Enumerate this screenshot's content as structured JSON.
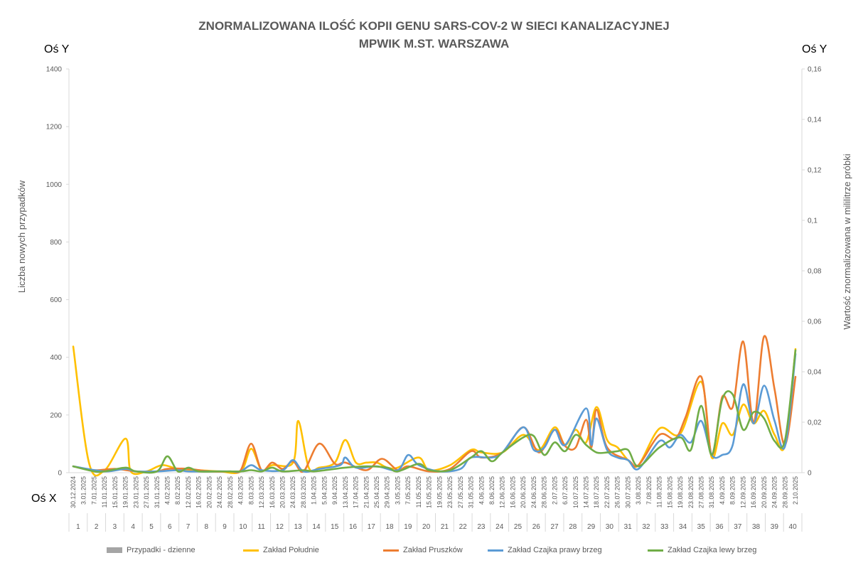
{
  "title_line1": "ZNORMALIZOWANA ILOŚĆ KOPII GENU SARS-COV-2 W SIECI KANALIZACYJNEJ",
  "title_line2": "MPWIK M.ST. WARSZAWA",
  "corner_y_left": "Oś Y",
  "corner_y_right": "Oś Y",
  "corner_x": "Oś X",
  "chart_data": {
    "type": "line",
    "title": "ZNORMALIZOWANA ILOŚĆ KOPII GENU SARS-COV-2 W SIECI KANALIZACYJNEJ MPWIK M.ST. WARSZAWA",
    "ylabel": "Liczba nowych przypadków",
    "y2label": "Wartość znormalizowana  w mililitrze próbki",
    "ylim": [
      0,
      1400
    ],
    "y2lim": [
      0,
      0.16
    ],
    "yticks": [
      "0",
      "200",
      "400",
      "600",
      "800",
      "1000",
      "1200",
      "1400"
    ],
    "y2ticks": [
      "0",
      "0,02",
      "0,04",
      "0,06",
      "0,08",
      "0,1",
      "0,12",
      "0,14",
      "0,16"
    ],
    "grid": false,
    "legend_position": "bottom",
    "dates": [
      "30.12.2024",
      "3.01.2025",
      "7.01.2025",
      "11.01.2025",
      "15.01.2025",
      "19.01.2025",
      "23.01.2025",
      "27.01.2025",
      "31.01.2025",
      "4.02.2025",
      "8.02.2025",
      "12.02.2025",
      "16.02.2025",
      "20.02.2025",
      "24.02.2025",
      "28.02.2025",
      "4.03.2025",
      "8.03.2025",
      "12.03.2025",
      "16.03.2025",
      "20.03.2025",
      "24.03.2025",
      "28.03.2025",
      "1.04.2025",
      "5.04.2025",
      "9.04.2025",
      "13.04.2025",
      "17.04.2025",
      "21.04.2025",
      "25.04.2025",
      "29.04.2025",
      "3.05.2025",
      "7.05.2025",
      "11.05.2025",
      "15.05.2025",
      "19.05.2025",
      "23.05.2025",
      "27.05.2025",
      "31.05.2025",
      "4.06.2025",
      "8.06.2025",
      "12.06.2025",
      "16.06.2025",
      "20.06.2025",
      "24.06.2025",
      "28.06.2025",
      "2.07.2025",
      "6.07.2025",
      "10.07.2025",
      "14.07.2025",
      "18.07.2025",
      "22.07.2025",
      "26.07.2025",
      "30.07.2025",
      "3.08.2025",
      "7.08.2025",
      "11.08.2025",
      "15.08.2025",
      "19.08.2025",
      "23.08.2025",
      "27.08.2025",
      "31.08.2025",
      "4.09.2025",
      "8.09.2025",
      "12.09.2025",
      "16.09.2025",
      "20.09.2025",
      "24.09.2025",
      "28.09.2025",
      "2.10.2025"
    ],
    "weeks": [
      "1",
      "2",
      "3",
      "4",
      "5",
      "6",
      "7",
      "8",
      "9",
      "10",
      "11",
      "12",
      "13",
      "14",
      "15",
      "16",
      "17",
      "18",
      "19",
      "20",
      "21",
      "22",
      "23",
      "24",
      "25",
      "26",
      "27",
      "28",
      "29",
      "30",
      "31",
      "32",
      "33",
      "34",
      "35",
      "36",
      "37",
      "38",
      "39",
      "40"
    ],
    "series": [
      {
        "name": "Przypadki - dzienne",
        "color": "#a5a5a5",
        "axis": "left",
        "points": []
      },
      {
        "name": "Zakład Południe",
        "color": "#ffc000",
        "axis": "right",
        "points": [
          [
            "30.12.2024",
            0.05
          ],
          [
            "5.01.2025",
            0.004
          ],
          [
            "11.01.2025",
            0.001
          ],
          [
            "19.01.2025",
            0.0135
          ],
          [
            "21.01.2025",
            0.0005
          ],
          [
            "27.01.2025",
            0.0005
          ],
          [
            "2.02.2025",
            0.003
          ],
          [
            "8.02.2025",
            0.0015
          ],
          [
            "16.02.2025",
            0.001
          ],
          [
            "24.02.2025",
            0.0005
          ],
          [
            "4.03.2025",
            0.0005
          ],
          [
            "8.03.2025",
            0.0095
          ],
          [
            "12.03.2025",
            0.001
          ],
          [
            "16.03.2025",
            0.003
          ],
          [
            "24.03.2025",
            0.004
          ],
          [
            "26.03.2025",
            0.0205
          ],
          [
            "30.03.2025",
            0.002
          ],
          [
            "3.04.2025",
            0.002
          ],
          [
            "9.04.2025",
            0.004
          ],
          [
            "13.04.2025",
            0.013
          ],
          [
            "17.04.2025",
            0.004
          ],
          [
            "21.04.2025",
            0.004
          ],
          [
            "25.04.2025",
            0.004
          ],
          [
            "29.04.2025",
            0.002
          ],
          [
            "3.05.2025",
            0.002
          ],
          [
            "11.05.2025",
            0.006
          ],
          [
            "15.05.2025",
            0.001
          ],
          [
            "23.05.2025",
            0.003
          ],
          [
            "31.05.2025",
            0.009
          ],
          [
            "4.06.2025",
            0.008
          ],
          [
            "12.06.2025",
            0.008
          ],
          [
            "20.06.2025",
            0.015
          ],
          [
            "26.06.2025",
            0.009
          ],
          [
            "2.07.2025",
            0.018
          ],
          [
            "6.07.2025",
            0.011
          ],
          [
            "10.07.2025",
            0.017
          ],
          [
            "14.07.2025",
            0.012
          ],
          [
            "18.07.2025",
            0.026
          ],
          [
            "22.07.2025",
            0.013
          ],
          [
            "26.07.2025",
            0.01
          ],
          [
            "30.07.2025",
            0.005
          ],
          [
            "3.08.2025",
            0.003
          ],
          [
            "11.08.2025",
            0.0175
          ],
          [
            "19.08.2025",
            0.0155
          ],
          [
            "27.08.2025",
            0.036
          ],
          [
            "31.08.2025",
            0.006
          ],
          [
            "4.09.2025",
            0.0195
          ],
          [
            "8.09.2025",
            0.015
          ],
          [
            "12.09.2025",
            0.027
          ],
          [
            "16.09.2025",
            0.0195
          ],
          [
            "20.09.2025",
            0.0245
          ],
          [
            "24.09.2025",
            0.015
          ],
          [
            "28.09.2025",
            0.011
          ],
          [
            "2.10.2025",
            0.049
          ]
        ]
      },
      {
        "name": "Zakład Pruszków",
        "color": "#ed7d31",
        "axis": "right",
        "points": [
          [
            "30.12.2024",
            0.0025
          ],
          [
            "7.01.2025",
            0.001
          ],
          [
            "15.01.2025",
            0.0015
          ],
          [
            "23.01.2025",
            0.0005
          ],
          [
            "31.01.2025",
            0.0005
          ],
          [
            "4.02.2025",
            0.0015
          ],
          [
            "12.02.2025",
            0.0015
          ],
          [
            "20.02.2025",
            0.0005
          ],
          [
            "28.02.2025",
            0.0005
          ],
          [
            "4.03.2025",
            0.001
          ],
          [
            "8.03.2025",
            0.0115
          ],
          [
            "12.03.2025",
            0.001
          ],
          [
            "16.03.2025",
            0.004
          ],
          [
            "20.03.2025",
            0.0015
          ],
          [
            "24.03.2025",
            0.0045
          ],
          [
            "28.03.2025",
            0.0005
          ],
          [
            "3.04.2025",
            0.0115
          ],
          [
            "9.04.2025",
            0.0035
          ],
          [
            "13.04.2025",
            0.004
          ],
          [
            "21.04.2025",
            0.001
          ],
          [
            "27.04.2025",
            0.0055
          ],
          [
            "3.05.2025",
            0.001
          ],
          [
            "7.05.2025",
            0.0025
          ],
          [
            "15.05.2025",
            0.0005
          ],
          [
            "23.05.2025",
            0.0015
          ],
          [
            "31.05.2025",
            0.0085
          ],
          [
            "4.06.2025",
            0.006
          ],
          [
            "12.06.2025",
            0.008
          ],
          [
            "20.06.2025",
            0.018
          ],
          [
            "26.06.2025",
            0.008
          ],
          [
            "2.07.2025",
            0.017
          ],
          [
            "6.07.2025",
            0.0105
          ],
          [
            "10.07.2025",
            0.01
          ],
          [
            "14.07.2025",
            0.021
          ],
          [
            "16.07.2025",
            0.01
          ],
          [
            "18.07.2025",
            0.025
          ],
          [
            "22.07.2025",
            0.01
          ],
          [
            "30.07.2025",
            0.005
          ],
          [
            "3.08.2025",
            0.003
          ],
          [
            "11.08.2025",
            0.015
          ],
          [
            "17.08.2025",
            0.0135
          ],
          [
            "21.08.2025",
            0.022
          ],
          [
            "27.08.2025",
            0.038
          ],
          [
            "31.08.2025",
            0.007
          ],
          [
            "4.09.2025",
            0.03
          ],
          [
            "8.09.2025",
            0.026
          ],
          [
            "12.09.2025",
            0.052
          ],
          [
            "16.09.2025",
            0.02
          ],
          [
            "20.09.2025",
            0.054
          ],
          [
            "24.09.2025",
            0.033
          ],
          [
            "28.09.2025",
            0.011
          ],
          [
            "2.10.2025",
            0.038
          ]
        ]
      },
      {
        "name": "Zakład Czajka prawy brzeg",
        "color": "#5b9bd5",
        "axis": "right",
        "points": [
          [
            "30.12.2024",
            0.0025
          ],
          [
            "11.01.2025",
            0.0005
          ],
          [
            "19.01.2025",
            0.0015
          ],
          [
            "23.01.2025",
            0.0005
          ],
          [
            "31.01.2025",
            0.0005
          ],
          [
            "8.02.2025",
            0.001
          ],
          [
            "12.02.2025",
            0.0005
          ],
          [
            "20.02.2025",
            0.0005
          ],
          [
            "28.02.2025",
            0.0005
          ],
          [
            "4.03.2025",
            0.0005
          ],
          [
            "8.03.2025",
            0.003
          ],
          [
            "12.03.2025",
            0.001
          ],
          [
            "20.03.2025",
            0.001
          ],
          [
            "24.03.2025",
            0.005
          ],
          [
            "28.03.2025",
            0.0005
          ],
          [
            "3.04.2025",
            0.0015
          ],
          [
            "11.04.2025",
            0.003
          ],
          [
            "13.04.2025",
            0.006
          ],
          [
            "17.04.2025",
            0.002
          ],
          [
            "25.04.2025",
            0.0025
          ],
          [
            "3.05.2025",
            0.001
          ],
          [
            "7.05.2025",
            0.007
          ],
          [
            "11.05.2025",
            0.003
          ],
          [
            "19.05.2025",
            0.0005
          ],
          [
            "27.05.2025",
            0.0015
          ],
          [
            "31.05.2025",
            0.006
          ],
          [
            "8.06.2025",
            0.006
          ],
          [
            "12.06.2025",
            0.008
          ],
          [
            "20.06.2025",
            0.018
          ],
          [
            "24.06.2025",
            0.009
          ],
          [
            "28.06.2025",
            0.01
          ],
          [
            "2.07.2025",
            0.017
          ],
          [
            "6.07.2025",
            0.011
          ],
          [
            "14.07.2025",
            0.0255
          ],
          [
            "16.07.2025",
            0.011
          ],
          [
            "18.07.2025",
            0.0215
          ],
          [
            "22.07.2025",
            0.009
          ],
          [
            "26.07.2025",
            0.006
          ],
          [
            "30.07.2025",
            0.005
          ],
          [
            "3.08.2025",
            0.0015
          ],
          [
            "11.08.2025",
            0.0125
          ],
          [
            "15.08.2025",
            0.01
          ],
          [
            "19.08.2025",
            0.015
          ],
          [
            "23.08.2025",
            0.012
          ],
          [
            "27.08.2025",
            0.0205
          ],
          [
            "31.08.2025",
            0.007
          ],
          [
            "4.09.2025",
            0.007
          ],
          [
            "8.09.2025",
            0.011
          ],
          [
            "12.09.2025",
            0.035
          ],
          [
            "16.09.2025",
            0.0195
          ],
          [
            "20.09.2025",
            0.0345
          ],
          [
            "24.09.2025",
            0.0205
          ],
          [
            "28.09.2025",
            0.0105
          ],
          [
            "2.10.2025",
            0.047
          ]
        ]
      },
      {
        "name": "Zakład Czajka lewy brzeg",
        "color": "#70ad47",
        "axis": "right",
        "points": [
          [
            "30.12.2024",
            0.0025
          ],
          [
            "7.01.2025",
            0.0005
          ],
          [
            "11.01.2025",
            0.0005
          ],
          [
            "19.01.2025",
            0.002
          ],
          [
            "23.01.2025",
            0.0005
          ],
          [
            "31.01.2025",
            0.0005
          ],
          [
            "4.02.2025",
            0.0065
          ],
          [
            "8.02.2025",
            0.0005
          ],
          [
            "12.02.2025",
            0.002
          ],
          [
            "16.02.2025",
            0.0005
          ],
          [
            "24.02.2025",
            0.0005
          ],
          [
            "4.03.2025",
            0.0005
          ],
          [
            "8.03.2025",
            0.001
          ],
          [
            "12.03.2025",
            0.0005
          ],
          [
            "16.03.2025",
            0.002
          ],
          [
            "20.03.2025",
            0.0005
          ],
          [
            "28.03.2025",
            0.001
          ],
          [
            "1.04.2025",
            0.0005
          ],
          [
            "9.04.2025",
            0.0015
          ],
          [
            "13.04.2025",
            0.002
          ],
          [
            "21.04.2025",
            0.0025
          ],
          [
            "29.04.2025",
            0.002
          ],
          [
            "3.05.2025",
            0.0005
          ],
          [
            "11.05.2025",
            0.0035
          ],
          [
            "15.05.2025",
            0.001
          ],
          [
            "23.05.2025",
            0.001
          ],
          [
            "31.05.2025",
            0.006
          ],
          [
            "4.06.2025",
            0.0085
          ],
          [
            "8.06.2025",
            0.0045
          ],
          [
            "12.06.2025",
            0.008
          ],
          [
            "20.06.2025",
            0.014
          ],
          [
            "24.06.2025",
            0.0145
          ],
          [
            "28.06.2025",
            0.007
          ],
          [
            "2.07.2025",
            0.012
          ],
          [
            "6.07.2025",
            0.0085
          ],
          [
            "10.07.2025",
            0.015
          ],
          [
            "14.07.2025",
            0.011
          ],
          [
            "18.07.2025",
            0.008
          ],
          [
            "22.07.2025",
            0.008
          ],
          [
            "26.07.2025",
            0.0085
          ],
          [
            "30.07.2025",
            0.009
          ],
          [
            "3.08.2025",
            0.0025
          ],
          [
            "11.08.2025",
            0.01
          ],
          [
            "19.08.2025",
            0.014
          ],
          [
            "23.08.2025",
            0.009
          ],
          [
            "27.08.2025",
            0.0265
          ],
          [
            "31.08.2025",
            0.007
          ],
          [
            "4.09.2025",
            0.029
          ],
          [
            "8.09.2025",
            0.031
          ],
          [
            "12.09.2025",
            0.017
          ],
          [
            "16.09.2025",
            0.024
          ],
          [
            "20.09.2025",
            0.0215
          ],
          [
            "24.09.2025",
            0.0125
          ],
          [
            "28.09.2025",
            0.013
          ],
          [
            "2.10.2025",
            0.0485
          ]
        ]
      }
    ]
  }
}
